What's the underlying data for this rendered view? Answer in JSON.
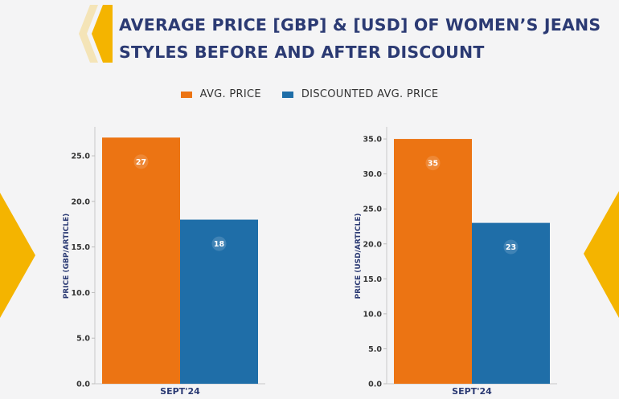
{
  "title_lines": [
    "AVERAGE PRICE [GBP] & [USD] OF WOMEN’S JEANS",
    "STYLES BEFORE AND AFTER DISCOUNT"
  ],
  "colors": {
    "title": "#2b3a73",
    "avg_price": "#ec7413",
    "discounted_avg_price": "#1f6ea8",
    "accent_gold": "#f4b400"
  },
  "legend": [
    {
      "label": "AVG. PRICE",
      "color": "#ec7413"
    },
    {
      "label": "DISCOUNTED AVG. PRICE",
      "color": "#1f6ea8"
    }
  ],
  "chart_data": [
    {
      "type": "bar",
      "categories": [
        "SEPT'24"
      ],
      "series": [
        {
          "name": "AVG. PRICE",
          "values": [
            27
          ]
        },
        {
          "name": "DISCOUNTED AVG. PRICE",
          "values": [
            18
          ]
        }
      ],
      "data_labels": [
        "27",
        "18"
      ],
      "xlabel": "SEPT'24",
      "ylabel": "PRICE (GBP/ARTICLE)",
      "ylim": [
        0,
        28
      ],
      "yticks": [
        "0.0",
        "5.0",
        "10.0",
        "15.0",
        "20.0",
        "25.0"
      ],
      "ytick_values": [
        0,
        5,
        10,
        15,
        20,
        25
      ],
      "grid": false
    },
    {
      "type": "bar",
      "categories": [
        "SEPT'24"
      ],
      "series": [
        {
          "name": "AVG. PRICE",
          "values": [
            35
          ]
        },
        {
          "name": "DISCOUNTED AVG. PRICE",
          "values": [
            23
          ]
        }
      ],
      "data_labels": [
        "35",
        "23"
      ],
      "xlabel": "SEPT'24",
      "ylabel": "PRICE (USD/ARTICLE)",
      "ylim": [
        0,
        36.5
      ],
      "yticks": [
        "0.0",
        "5.0",
        "10.0",
        "15.0",
        "20.0",
        "25.0",
        "30.0",
        "35.0"
      ],
      "ytick_values": [
        0,
        5,
        10,
        15,
        20,
        25,
        30,
        35
      ],
      "grid": false
    }
  ]
}
